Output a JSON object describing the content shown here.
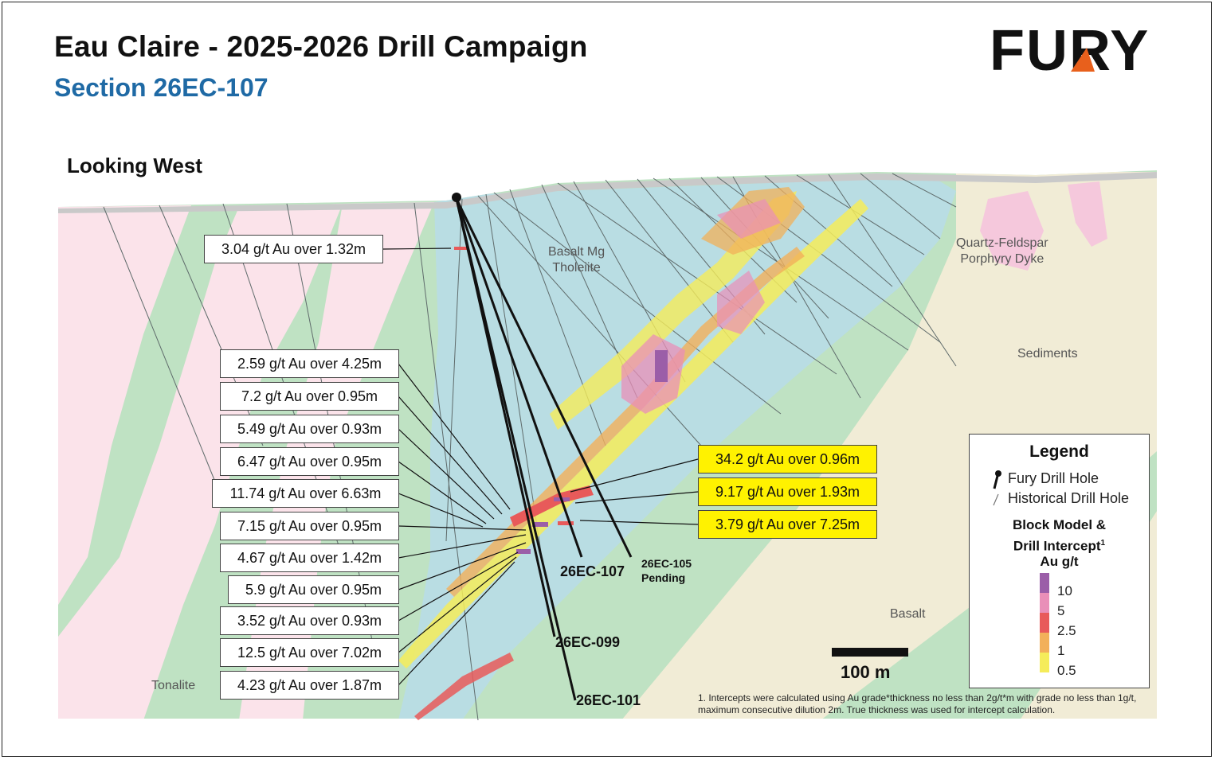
{
  "header": {
    "title": "Eau Claire - 2025-2026 Drill Campaign",
    "subtitle": "Section 26EC-107",
    "logo_text": "FURY"
  },
  "view_label": "Looking West",
  "geology_labels": {
    "basalt_mg_line1": "Basalt Mg",
    "basalt_mg_line2": "Tholeiite",
    "porphyry_line1": "Quartz-Feldspar",
    "porphyry_line2": "Porphyry Dyke",
    "sediments": "Sediments",
    "basalt": "Basalt",
    "tonalite": "Tonalite"
  },
  "intercepts_left": [
    "3.04 g/t Au over 1.32m",
    "2.59 g/t Au over 4.25m",
    "7.2 g/t Au over 0.95m",
    "5.49 g/t Au over 0.93m",
    "6.47 g/t Au over 0.95m",
    "11.74 g/t Au over 6.63m",
    "7.15 g/t Au over 0.95m",
    "4.67 g/t Au over 1.42m",
    "5.9 g/t Au over 0.95m",
    "3.52 g/t Au over 0.93m",
    "12.5 g/t Au over 7.02m",
    "4.23 g/t Au over 1.87m"
  ],
  "intercepts_highlight": [
    "34.2 g/t Au over 0.96m",
    "9.17 g/t Au over 1.93m",
    "3.79 g/t Au over 7.25m"
  ],
  "holes": {
    "h107": "26EC-107",
    "h105_line1": "26EC-105",
    "h105_line2": "Pending",
    "h099": "26EC-099",
    "h101": "26EC-101"
  },
  "legend": {
    "title": "Legend",
    "fury_hole": "Fury Drill Hole",
    "historical_hole": "Historical Drill Hole",
    "block_line1": "Block Model &",
    "block_line2": "Drill Intercept",
    "block_sup": "1",
    "unit": "Au g/t",
    "ramp": [
      {
        "label": "10",
        "color": "#9b5ea8"
      },
      {
        "label": "5",
        "color": "#e98fb8"
      },
      {
        "label": "2.5",
        "color": "#e85a5a"
      },
      {
        "label": "1",
        "color": "#f2b05a"
      },
      {
        "label": "0.5",
        "color": "#f5ec5a"
      }
    ]
  },
  "scale_bar": "100 m",
  "footnote": "1.  Intercepts were calculated using Au grade*thickness no less than 2g/t*m with grade no less than 1g/t, maximum consecutive dilution 2m. True thickness was used for intercept calculation.",
  "colors": {
    "green": "#bfe2c3",
    "blue": "#b9dde3",
    "pink": "#fbe3ea",
    "beige": "#f1ecd6",
    "title_blue": "#1f6aa5",
    "highlight": "#fff200"
  }
}
